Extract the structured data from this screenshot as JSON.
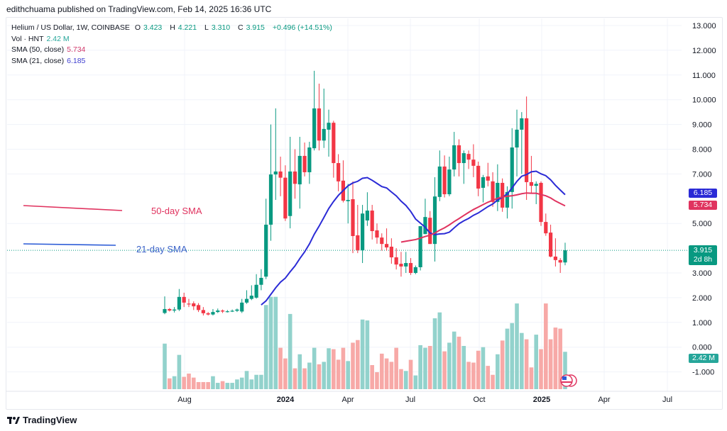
{
  "publisher": "edithchuama published on TradingView.com, Feb 14, 2025 16:36 UTC",
  "legend": {
    "symbol": "Helium / US Dollar, 1W, COINBASE",
    "o_label": "O",
    "o": "3.423",
    "h_label": "H",
    "h": "4.221",
    "l_label": "L",
    "l": "3.310",
    "c_label": "C",
    "c": "3.915",
    "change": "+0.496 (+14.51%)",
    "vol_label": "Vol · HNT",
    "vol": "2.42 M",
    "sma50_label": "SMA (50, close)",
    "sma50": "5.734",
    "sma21_label": "SMA (21, close)",
    "sma21": "6.185"
  },
  "annotations": {
    "sma50_text": "50-day SMA",
    "sma21_text": "21-day SMA"
  },
  "price_labels": {
    "sma21": "6.185",
    "sma50": "5.734",
    "last": "3.915",
    "countdown": "2d 8h",
    "volume": "2.42 M"
  },
  "footer_logo": "TradingView",
  "colors": {
    "up": "#089981",
    "down": "#f23645",
    "up_vol": "#92d2cc",
    "down_vol": "#f7a9a7",
    "sma21": "#2b2bd6",
    "sma50": "#e0335f",
    "grid": "#f0f3fa"
  },
  "chart_data": {
    "type": "candlestick",
    "interval": "1W",
    "yaxis": {
      "ticks": [
        "13.000",
        "12.000",
        "11.000",
        "10.000",
        "9.000",
        "8.000",
        "7.000",
        "5.000",
        "3.000",
        "2.000",
        "1.000",
        "0.000",
        "-1.000"
      ],
      "range": [
        -1.3,
        13.3
      ]
    },
    "xaxis": {
      "ticks": [
        "Aug",
        "2024",
        "Apr",
        "Jul",
        "Oct",
        "2025",
        "Apr",
        "Jul"
      ]
    },
    "grid": true,
    "ohlc": [
      [
        1.38,
        2.05,
        1.33,
        1.54
      ],
      [
        1.54,
        1.58,
        1.44,
        1.48
      ],
      [
        1.48,
        1.62,
        1.4,
        1.52
      ],
      [
        1.52,
        2.35,
        1.46,
        2.03
      ],
      [
        2.03,
        2.2,
        1.62,
        1.8
      ],
      [
        1.76,
        1.95,
        1.62,
        1.73
      ],
      [
        1.77,
        1.85,
        1.5,
        1.65
      ],
      [
        1.7,
        1.78,
        1.42,
        1.5
      ],
      [
        1.5,
        1.62,
        1.28,
        1.37
      ],
      [
        1.37,
        1.42,
        1.28,
        1.32
      ],
      [
        1.32,
        1.54,
        1.28,
        1.42
      ],
      [
        1.42,
        1.56,
        1.38,
        1.48
      ],
      [
        1.48,
        1.52,
        1.38,
        1.44
      ],
      [
        1.44,
        1.5,
        1.4,
        1.45
      ],
      [
        1.45,
        1.52,
        1.42,
        1.47
      ],
      [
        1.47,
        1.56,
        1.42,
        1.52
      ],
      [
        1.44,
        1.95,
        1.38,
        1.8
      ],
      [
        1.8,
        2.3,
        1.75,
        1.95
      ],
      [
        1.95,
        2.5,
        1.9,
        2.08
      ],
      [
        2.0,
        2.95,
        1.96,
        2.52
      ],
      [
        2.52,
        3.15,
        2.3,
        2.8
      ],
      [
        2.85,
        6.0,
        2.75,
        4.95
      ],
      [
        4.95,
        9.0,
        4.3,
        6.98
      ],
      [
        6.98,
        9.65,
        5.95,
        7.1
      ],
      [
        7.1,
        7.7,
        6.1,
        6.85
      ],
      [
        6.85,
        7.35,
        5.1,
        5.2
      ],
      [
        5.3,
        8.5,
        4.8,
        7.1
      ],
      [
        7.1,
        8.0,
        6.0,
        6.6
      ],
      [
        6.58,
        8.5,
        5.6,
        7.73
      ],
      [
        7.73,
        8.27,
        6.9,
        7.07
      ],
      [
        7.07,
        8.3,
        6.6,
        8.07
      ],
      [
        8.04,
        11.17,
        7.95,
        9.65
      ],
      [
        9.65,
        10.65,
        7.95,
        8.35
      ],
      [
        8.35,
        10.45,
        8.05,
        8.82
      ],
      [
        8.79,
        9.6,
        7.7,
        9.07
      ],
      [
        9.07,
        9.15,
        6.85,
        7.44
      ],
      [
        7.44,
        7.8,
        6.3,
        6.7
      ],
      [
        6.73,
        7.55,
        5.85,
        5.92
      ],
      [
        5.9,
        6.6,
        5.0,
        5.95
      ],
      [
        5.98,
        6.7,
        3.8,
        4.49
      ],
      [
        4.52,
        5.75,
        3.8,
        3.92
      ],
      [
        3.92,
        5.75,
        3.4,
        5.4
      ],
      [
        5.12,
        6.26,
        4.9,
        5.52
      ],
      [
        5.52,
        5.75,
        4.35,
        4.69
      ],
      [
        4.72,
        5.0,
        4.18,
        4.43
      ],
      [
        4.43,
        4.6,
        3.9,
        4.17
      ],
      [
        4.17,
        4.8,
        3.9,
        4.03
      ],
      [
        4.06,
        4.4,
        3.37,
        3.63
      ],
      [
        3.63,
        4.0,
        3.14,
        3.34
      ],
      [
        3.37,
        3.85,
        2.85,
        3.26
      ],
      [
        3.26,
        3.85,
        3.0,
        3.4
      ],
      [
        3.4,
        3.6,
        2.92,
        3.0
      ],
      [
        3.0,
        3.3,
        2.95,
        3.23
      ],
      [
        3.23,
        4.89,
        3.1,
        4.89
      ],
      [
        4.57,
        6.0,
        4.57,
        5.26
      ],
      [
        5.23,
        5.5,
        4.17,
        4.17
      ],
      [
        4.17,
        6.87,
        3.46,
        6.09
      ],
      [
        6.07,
        7.95,
        5.9,
        7.3
      ],
      [
        7.3,
        7.75,
        6.05,
        6.18
      ],
      [
        6.18,
        7.7,
        6.1,
        7.18
      ],
      [
        7.18,
        8.7,
        6.9,
        8.16
      ],
      [
        8.16,
        8.4,
        6.9,
        7.44
      ],
      [
        7.44,
        7.95,
        6.6,
        7.84
      ],
      [
        7.81,
        7.95,
        7.2,
        7.58
      ],
      [
        7.58,
        8.2,
        6.87,
        7.33
      ],
      [
        7.33,
        7.5,
        6.1,
        6.41
      ],
      [
        6.44,
        6.96,
        5.85,
        6.87
      ],
      [
        6.9,
        7.45,
        6.5,
        6.73
      ],
      [
        6.7,
        7.07,
        5.67,
        5.87
      ],
      [
        5.87,
        7.39,
        5.5,
        6.64
      ],
      [
        6.64,
        6.82,
        5.47,
        5.64
      ],
      [
        5.64,
        6.5,
        5.2,
        6.27
      ],
      [
        6.27,
        8.85,
        5.6,
        8.07
      ],
      [
        8.07,
        9.6,
        6.9,
        8.79
      ],
      [
        8.79,
        9.5,
        7.0,
        9.25
      ],
      [
        9.25,
        10.13,
        5.95,
        6.67
      ],
      [
        6.67,
        7.73,
        6.2,
        6.52
      ],
      [
        6.52,
        6.7,
        5.78,
        6.6
      ],
      [
        6.64,
        6.7,
        4.9,
        5.06
      ],
      [
        5.06,
        5.4,
        4.5,
        4.6
      ],
      [
        4.63,
        4.95,
        3.63,
        3.66
      ],
      [
        3.66,
        4.4,
        3.26,
        3.52
      ],
      [
        3.52,
        3.6,
        3.0,
        3.42
      ],
      [
        3.423,
        4.221,
        3.31,
        3.915
      ]
    ],
    "volume_millions": [
      2.95,
      0.7,
      0.84,
      2.22,
      0.8,
      1.01,
      0.75,
      0.46,
      0.46,
      0.46,
      0.84,
      0.41,
      0.52,
      0.41,
      0.41,
      0.63,
      0.75,
      1.18,
      0.63,
      0.93,
      0.93,
      5.45,
      5.98,
      5.98,
      2.68,
      1.99,
      4.87,
      1.35,
      2.26,
      1.35,
      1.72,
      2.68,
      1.61,
      1.77,
      2.65,
      2.59,
      1.91,
      2.68,
      1.82,
      3.01,
      3.18,
      4.51,
      4.45,
      1.56,
      1.1,
      2.3,
      1.99,
      1.77,
      2.68,
      1.3,
      1.18,
      1.9,
      0.89,
      2.85,
      2.68,
      2.8,
      4.59,
      4.97,
      2.45,
      3.01,
      3.73,
      3.4,
      2.8,
      1.77,
      1.72,
      2.49,
      2.72,
      1.51,
      0.93,
      2.26,
      3.15,
      3.92,
      4.28,
      5.55,
      3.64,
      3.23,
      1.41,
      3.53,
      2.59,
      5.55,
      3.23,
      3.99,
      3.92,
      2.42
    ],
    "sma_periods": [
      21,
      50
    ]
  }
}
